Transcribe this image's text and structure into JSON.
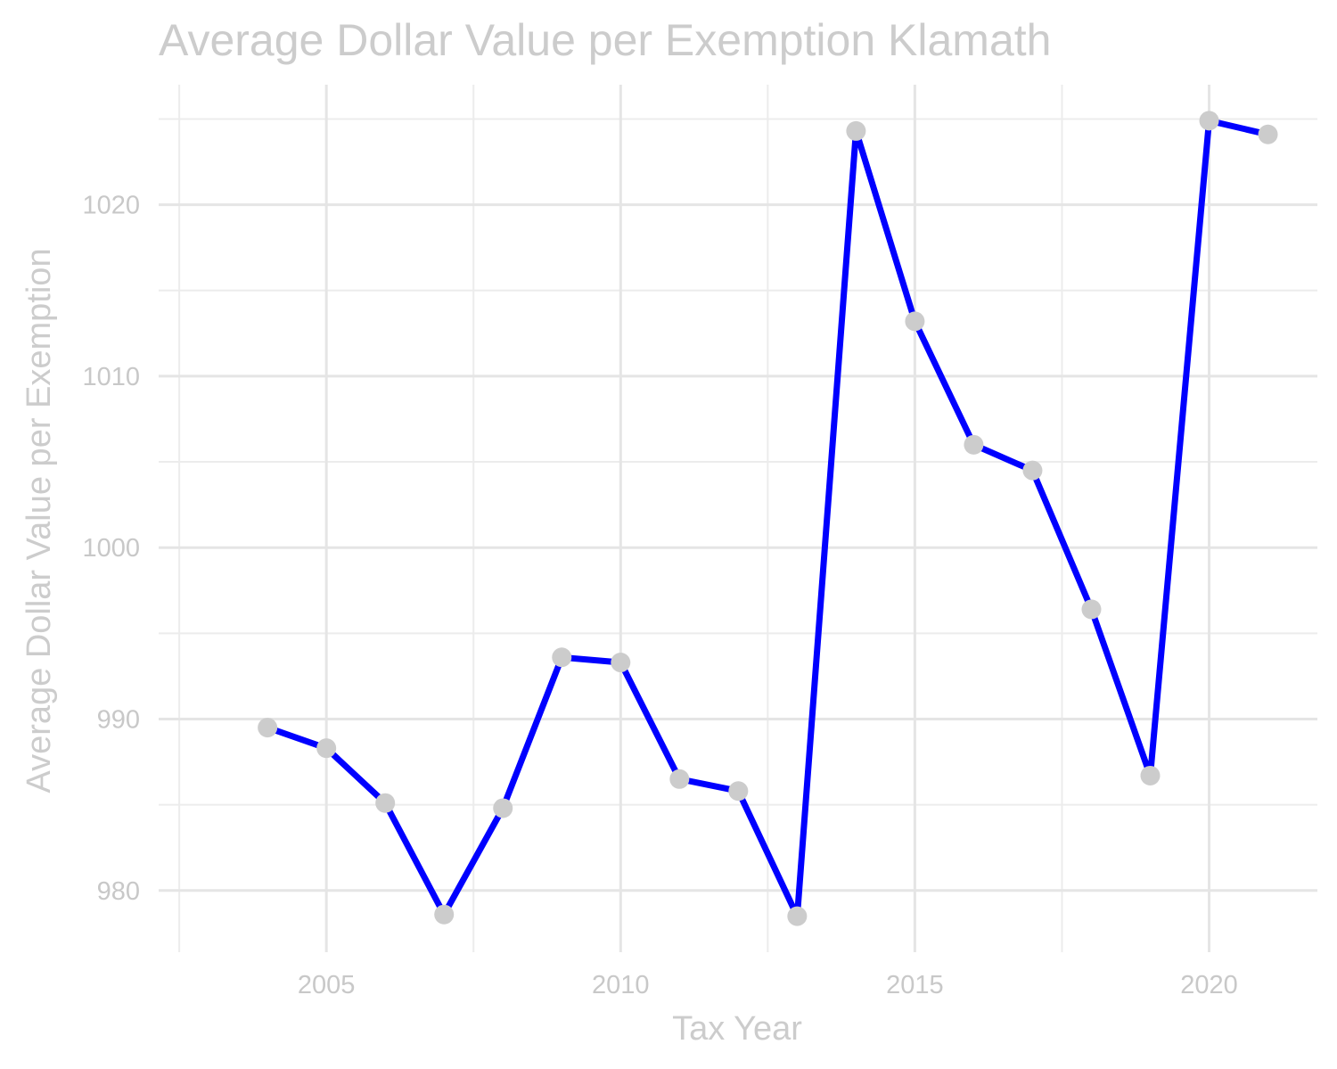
{
  "chart_data": {
    "type": "line",
    "title": "Average Dollar Value per Exemption Klamath",
    "xlabel": "Tax Year",
    "ylabel": "Average Dollar Value per Exemption",
    "x": [
      2004,
      2005,
      2006,
      2007,
      2008,
      2009,
      2010,
      2011,
      2012,
      2013,
      2014,
      2015,
      2016,
      2017,
      2018,
      2019,
      2020,
      2021
    ],
    "series": [
      {
        "values": [
          989.5,
          988.3,
          985.1,
          978.6,
          984.8,
          993.6,
          993.3,
          986.5,
          985.8,
          978.5,
          1024.3,
          1013.2,
          1006.0,
          1004.5,
          996.4,
          986.7,
          1024.9,
          1024.1
        ],
        "line_color": "#0000ff",
        "point_color": "#cccccc"
      }
    ],
    "xlim": [
      2002.15,
      2021.84
    ],
    "ylim": [
      976.4,
      1027.0
    ],
    "x_ticks": [
      2005,
      2010,
      2015,
      2020
    ],
    "x_tick_labels": [
      "2005",
      "2010",
      "2015",
      "2020"
    ],
    "x_minor_ticks": [
      2002.5,
      2007.5,
      2012.5,
      2017.5
    ],
    "y_ticks": [
      980,
      990,
      1000,
      1010,
      1020
    ],
    "y_tick_labels": [
      "980",
      "990",
      "1000",
      "1010",
      "1020"
    ],
    "y_minor_ticks": [
      985,
      995,
      1005,
      1015,
      1025
    ],
    "grid": true,
    "legend": "none"
  }
}
